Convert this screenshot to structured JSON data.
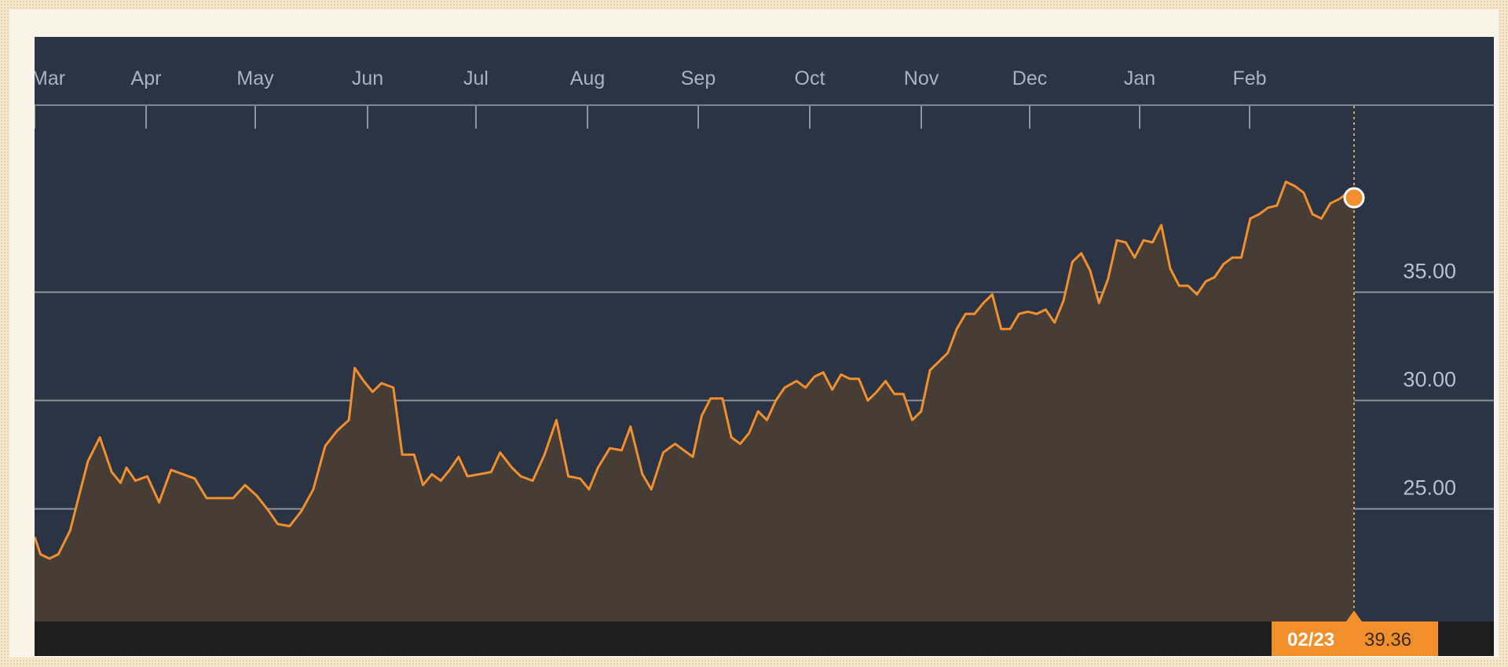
{
  "chart_data": {
    "type": "area",
    "title": "",
    "xlabel": "",
    "ylabel": "",
    "x_ticks": [
      "Mar",
      "Apr",
      "May",
      "Jun",
      "Jul",
      "Aug",
      "Sep",
      "Oct",
      "Nov",
      "Dec",
      "Jan",
      "Feb"
    ],
    "y_ticks": [
      "25.00",
      "30.00",
      "35.00"
    ],
    "ylim": [
      19.8,
      43.6
    ],
    "grid": "horizontal",
    "series": [
      {
        "color": "#f28f2d",
        "points": [
          [
            0,
            23.7
          ],
          [
            2,
            22.9
          ],
          [
            5,
            22.7
          ],
          [
            8,
            22.9
          ],
          [
            12,
            24.0
          ],
          [
            15,
            25.6
          ],
          [
            18,
            27.2
          ],
          [
            22,
            28.3
          ],
          [
            26,
            26.7
          ],
          [
            29,
            26.2
          ],
          [
            31,
            26.9
          ],
          [
            34,
            26.3
          ],
          [
            38,
            26.5
          ],
          [
            42,
            25.3
          ],
          [
            46,
            26.8
          ],
          [
            50,
            26.6
          ],
          [
            54,
            26.4
          ],
          [
            58,
            25.5
          ],
          [
            62,
            25.5
          ],
          [
            67,
            25.5
          ],
          [
            71,
            26.1
          ],
          [
            75,
            25.6
          ],
          [
            79,
            24.9
          ],
          [
            82,
            24.3
          ],
          [
            86,
            24.2
          ],
          [
            90,
            24.9
          ],
          [
            94,
            25.9
          ],
          [
            98,
            27.9
          ],
          [
            102,
            28.6
          ],
          [
            106,
            29.1
          ],
          [
            108,
            31.5
          ],
          [
            111,
            30.9
          ],
          [
            114,
            30.4
          ],
          [
            117,
            30.8
          ],
          [
            121,
            30.6
          ],
          [
            124,
            27.5
          ],
          [
            128,
            27.5
          ],
          [
            131,
            26.1
          ],
          [
            134,
            26.6
          ],
          [
            137,
            26.3
          ],
          [
            140,
            26.8
          ],
          [
            143,
            27.4
          ],
          [
            146,
            26.5
          ],
          [
            150,
            26.6
          ],
          [
            154,
            26.7
          ],
          [
            157,
            27.6
          ],
          [
            161,
            26.9
          ],
          [
            164,
            26.5
          ],
          [
            168,
            26.3
          ],
          [
            172,
            27.5
          ],
          [
            176,
            29.1
          ],
          [
            180,
            26.5
          ],
          [
            184,
            26.4
          ],
          [
            187,
            25.9
          ],
          [
            190,
            26.9
          ],
          [
            194,
            27.8
          ],
          [
            198,
            27.7
          ],
          [
            201,
            28.8
          ],
          [
            205,
            26.6
          ],
          [
            208,
            25.9
          ],
          [
            212,
            27.6
          ],
          [
            216,
            28.0
          ],
          [
            219,
            27.7
          ],
          [
            222,
            27.4
          ],
          [
            225,
            29.3
          ],
          [
            228,
            30.1
          ],
          [
            232,
            30.1
          ],
          [
            235,
            28.3
          ],
          [
            238,
            28.0
          ],
          [
            241,
            28.5
          ],
          [
            244,
            29.5
          ],
          [
            247,
            29.1
          ],
          [
            250,
            30.0
          ],
          [
            253,
            30.6
          ],
          [
            257,
            30.9
          ],
          [
            260,
            30.6
          ],
          [
            263,
            31.1
          ],
          [
            266,
            31.3
          ],
          [
            269,
            30.5
          ],
          [
            272,
            31.2
          ],
          [
            275,
            31.0
          ],
          [
            278,
            31.0
          ],
          [
            281,
            30.0
          ],
          [
            284,
            30.4
          ],
          [
            287,
            30.9
          ],
          [
            290,
            30.3
          ],
          [
            293,
            30.3
          ],
          [
            296,
            29.1
          ],
          [
            299,
            29.5
          ],
          [
            302,
            31.4
          ],
          [
            305,
            31.8
          ],
          [
            308,
            32.2
          ],
          [
            311,
            33.3
          ],
          [
            314,
            34.0
          ],
          [
            317,
            34.0
          ],
          [
            320,
            34.5
          ],
          [
            323,
            34.9
          ],
          [
            326,
            33.3
          ],
          [
            329,
            33.3
          ],
          [
            332,
            34.0
          ],
          [
            335,
            34.1
          ],
          [
            338,
            34.0
          ],
          [
            341,
            34.2
          ],
          [
            344,
            33.6
          ],
          [
            347,
            34.6
          ],
          [
            350,
            36.4
          ],
          [
            353,
            36.8
          ],
          [
            356,
            36.0
          ],
          [
            359,
            34.5
          ],
          [
            362,
            35.6
          ],
          [
            365,
            37.4
          ],
          [
            368,
            37.3
          ],
          [
            371,
            36.6
          ],
          [
            374,
            37.4
          ],
          [
            377,
            37.3
          ],
          [
            380,
            38.1
          ],
          [
            383,
            36.1
          ],
          [
            386,
            35.3
          ],
          [
            389,
            35.3
          ],
          [
            392,
            34.9
          ],
          [
            395,
            35.5
          ],
          [
            398,
            35.7
          ],
          [
            401,
            36.3
          ],
          [
            404,
            36.6
          ],
          [
            407,
            36.6
          ],
          [
            410,
            38.4
          ],
          [
            413,
            38.6
          ],
          [
            416,
            38.9
          ],
          [
            419,
            39.0
          ],
          [
            422,
            40.1
          ],
          [
            425,
            39.9
          ],
          [
            428,
            39.6
          ],
          [
            431,
            38.6
          ],
          [
            434,
            38.4
          ],
          [
            437,
            39.1
          ],
          [
            440,
            39.3
          ],
          [
            443,
            39.6
          ],
          [
            445,
            39.36
          ]
        ]
      }
    ],
    "selected_point": {
      "date": "02/23",
      "value": "39.36"
    }
  }
}
